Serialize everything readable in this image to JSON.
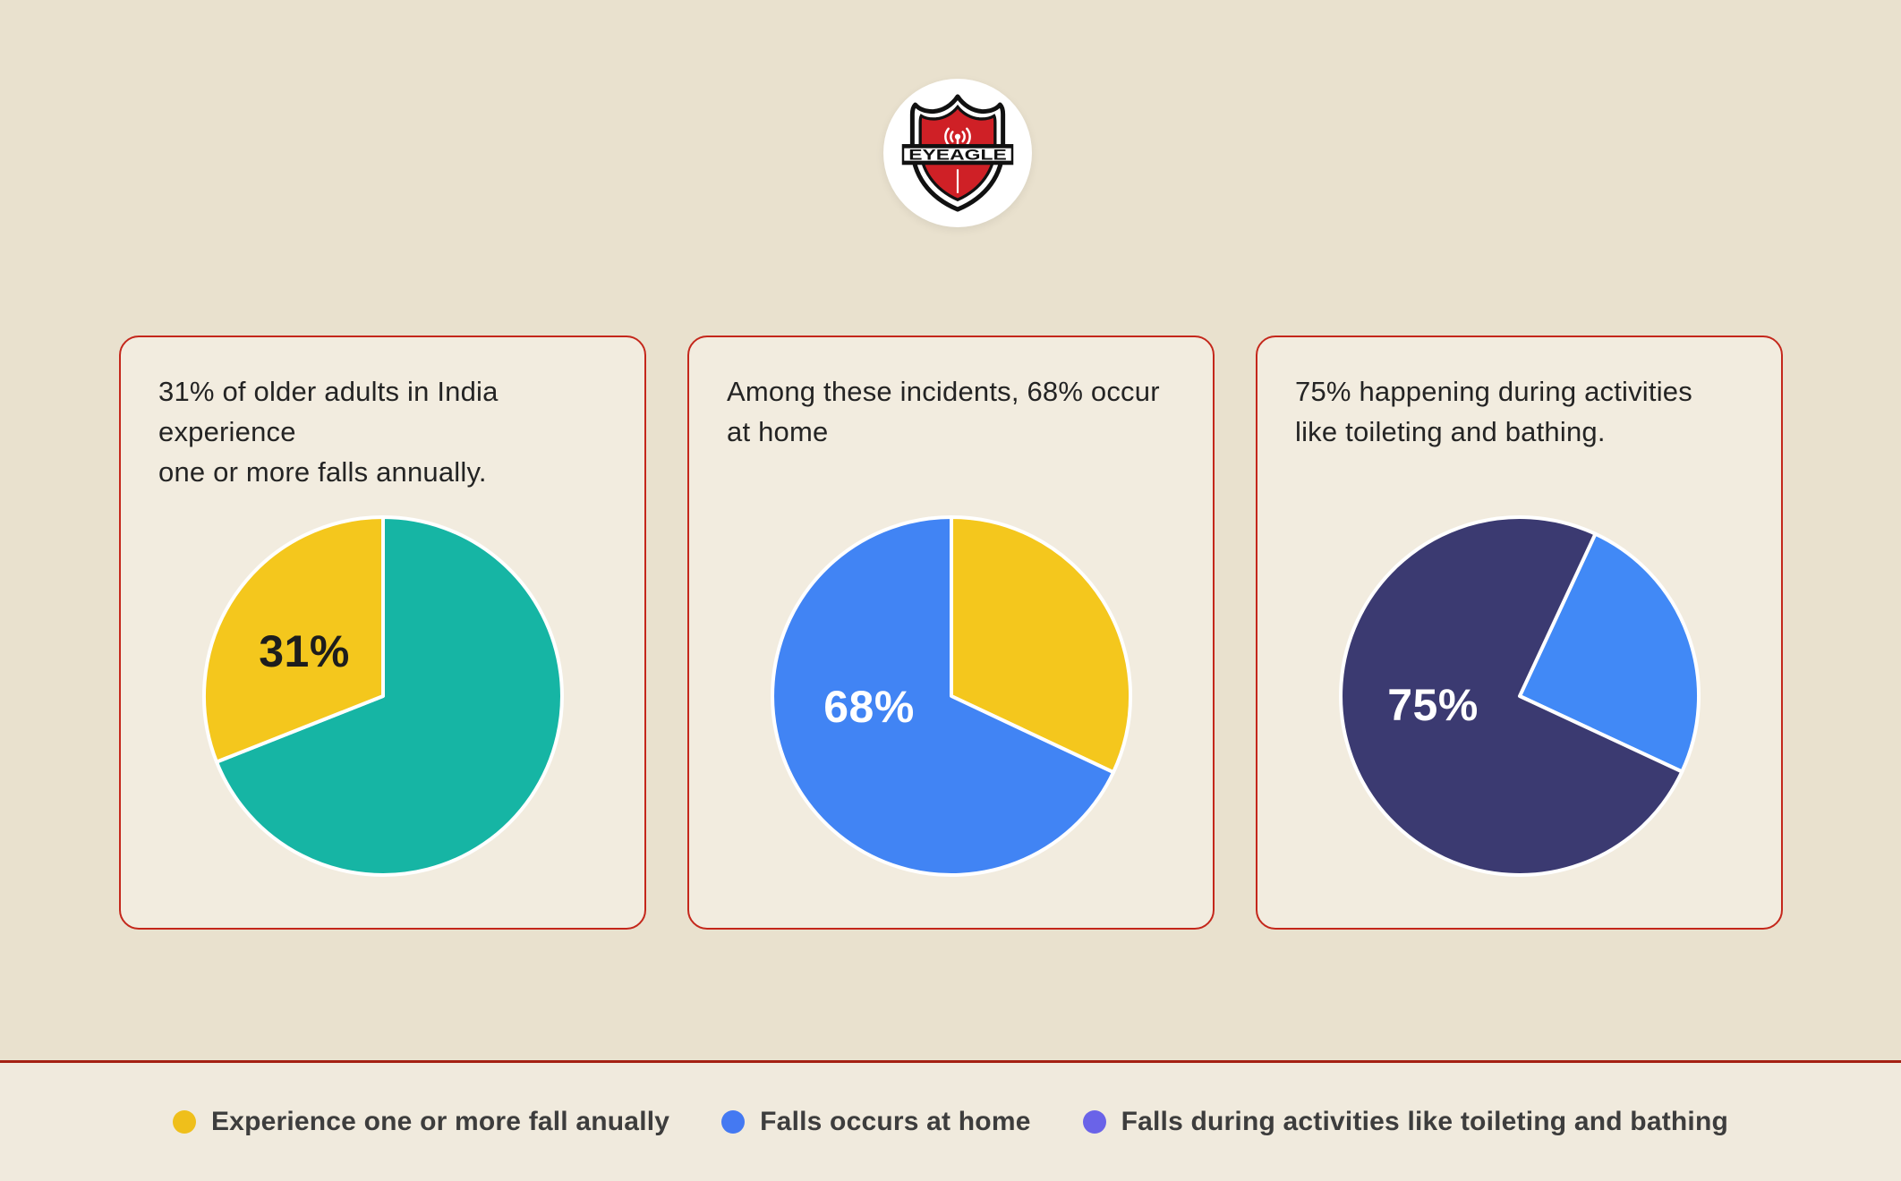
{
  "logo": {
    "brand": "EYEAGLE",
    "shield_red": "#cf2026",
    "circle_bg": "#ffffff"
  },
  "chart_data": [
    {
      "type": "pie",
      "title": "31% of older adults in India experience\none or more falls annually.",
      "label": "31%",
      "label_color": "#1d1d1d",
      "start_angle": 0,
      "slices": [
        {
          "name": "other",
          "value": 69,
          "color": "#16b5a4"
        },
        {
          "name": "Experience one or more fall anually",
          "value": 31,
          "color": "#f4c71d"
        }
      ]
    },
    {
      "type": "pie",
      "title": "Among these incidents, 68% occur\nat home",
      "label": "68%",
      "label_color": "#ffffff",
      "start_angle": 0,
      "slices": [
        {
          "name": "other",
          "value": 32,
          "color": "#f4c71d"
        },
        {
          "name": "Falls occurs at home",
          "value": 68,
          "color": "#4184f4"
        }
      ]
    },
    {
      "type": "pie",
      "title": "75% happening during activities\nlike toileting and bathing.",
      "label": "75%",
      "label_color": "#ffffff",
      "start_angle": 25,
      "slices": [
        {
          "name": "other",
          "value": 25,
          "color": "#4189f6"
        },
        {
          "name": "Falls during activities like toileting and bathing",
          "value": 75,
          "color": "#3b3a71"
        }
      ]
    }
  ],
  "legend": {
    "items": [
      {
        "label": "Experience one or more fall anually",
        "color": "#efbf1b"
      },
      {
        "label": "Falls occurs at home",
        "color": "#4479f2"
      },
      {
        "label": "Falls during activities like toileting and bathing",
        "color": "#6a63e8"
      }
    ]
  },
  "colors": {
    "page_bg": "#e9e1ce",
    "card_bg": "#f2ecdf",
    "card_border": "#c4271b",
    "divider": "#a42113",
    "footer_bg": "#f0eadd"
  }
}
